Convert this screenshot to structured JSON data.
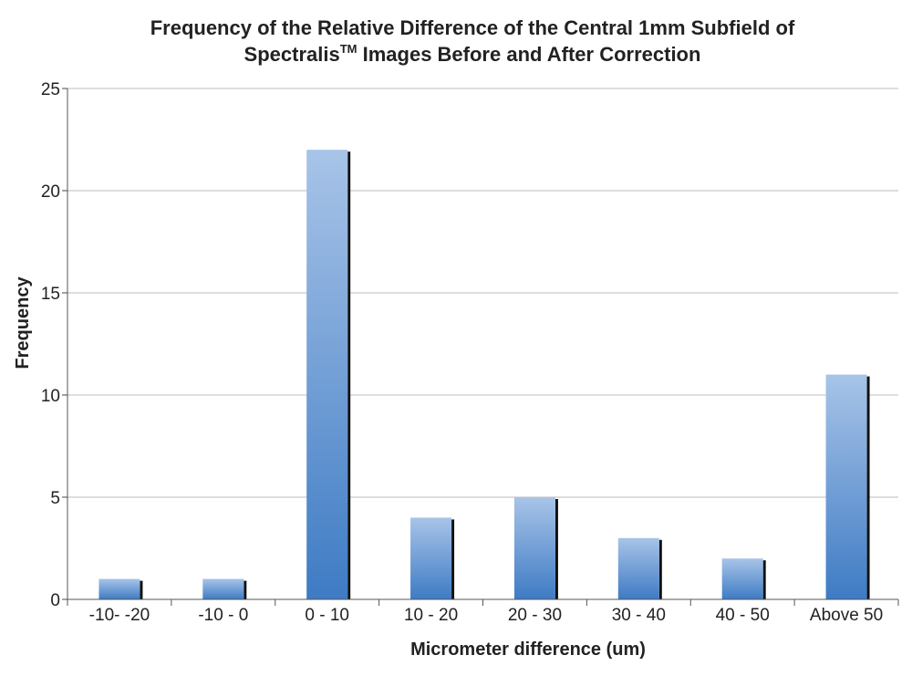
{
  "chart_data": {
    "type": "bar",
    "title_line1": "Frequency of the Relative Difference of the Central 1mm Subfield of",
    "title_line2_a": "Spectralis",
    "title_line2_tm": "TM",
    "title_line2_b": " Images Before and After Correction",
    "xlabel": "Micrometer difference (um)",
    "ylabel": "Frequency",
    "categories": [
      "-10- -20",
      "-10 - 0",
      "0 - 10",
      "10 - 20",
      "20 - 30",
      "30 - 40",
      "40 - 50",
      "Above 50"
    ],
    "values": [
      1,
      1,
      22,
      4,
      5,
      3,
      2,
      11
    ],
    "ylim": [
      0,
      25
    ],
    "yticks": [
      0,
      5,
      10,
      15,
      20,
      25
    ],
    "grid": true,
    "legend": "none",
    "colors": {
      "bar_top": "#a8c4e8",
      "bar_bottom": "#3e7bc4",
      "bar_shadow": "#111111",
      "grid": "#bdbdbd"
    }
  }
}
